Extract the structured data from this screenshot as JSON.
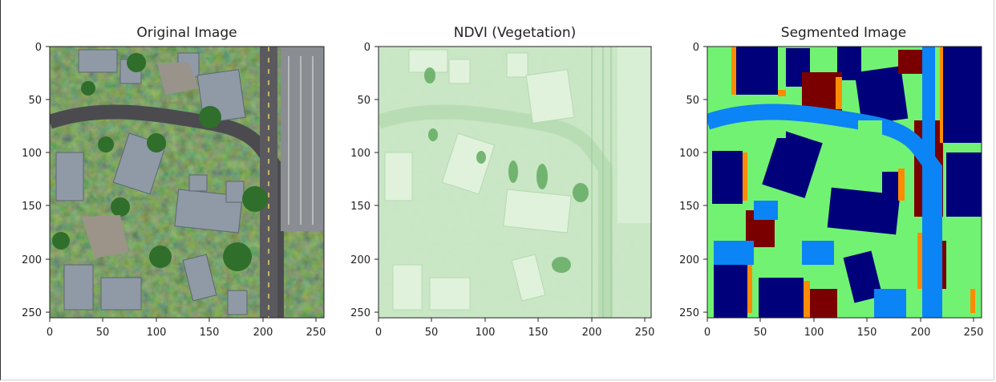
{
  "panels": [
    {
      "id": "original",
      "title": "Original Image",
      "x_ticks": [
        "0",
        "50",
        "100",
        "150",
        "200",
        "250"
      ],
      "y_ticks": [
        "0",
        "50",
        "100",
        "150",
        "200",
        "250"
      ]
    },
    {
      "id": "ndvi",
      "title": "NDVI (Vegetation)",
      "x_ticks": [
        "0",
        "50",
        "100",
        "150",
        "200",
        "250"
      ],
      "y_ticks": [
        "0",
        "50",
        "100",
        "150",
        "200",
        "250"
      ]
    },
    {
      "id": "segmented",
      "title": "Segmented Image",
      "x_ticks": [
        "0",
        "50",
        "100",
        "150",
        "200",
        "250"
      ],
      "y_ticks": [
        "0",
        "50",
        "100",
        "150",
        "200",
        "250"
      ]
    }
  ],
  "colors": {
    "segment_road": "#0b84f5",
    "segment_roof": "#00007a",
    "segment_veg": "#72f272",
    "segment_soil": "#7a0000",
    "segment_edge": "#ff8c00",
    "ndvi_base": "#cfeacb",
    "ndvi_dark": "#7fbf7f"
  }
}
